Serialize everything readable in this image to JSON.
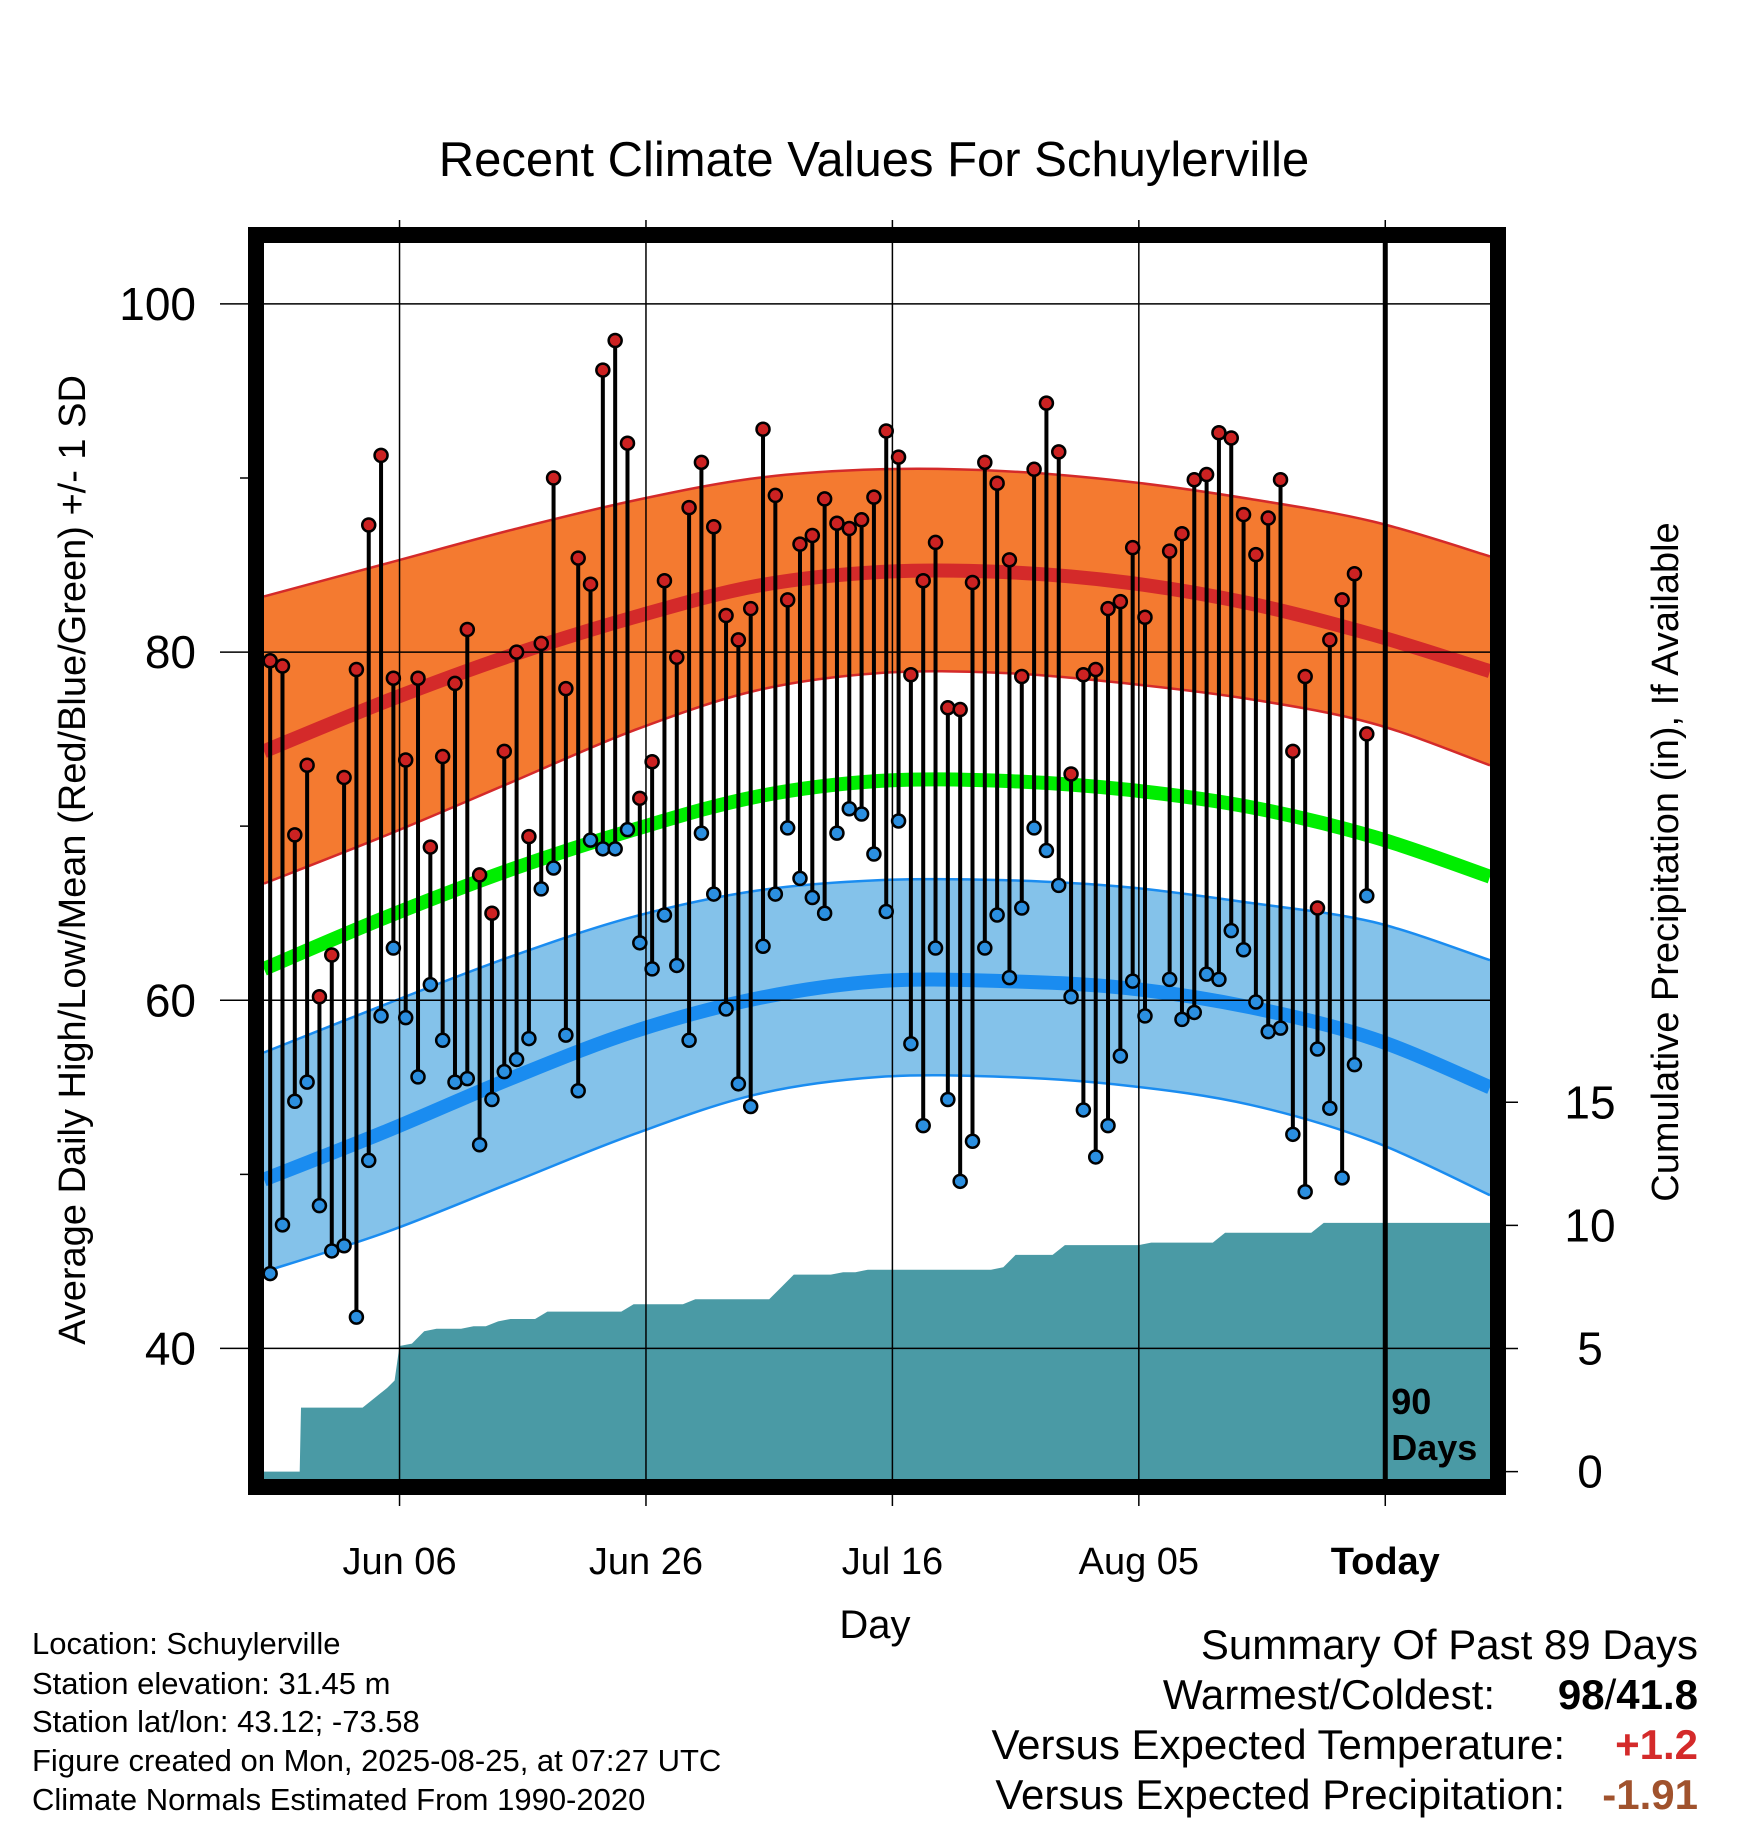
{
  "chart_data": {
    "type": "line",
    "title": "Recent Climate Values For Schuylerville",
    "xlabel": "Day",
    "ylabel": "Average Daily High/Low/Mean (Red/Blue/Green) +/- 1 SD",
    "y2label": "Cumulative Precipitation (in), If Available",
    "ylim": [
      32.5,
      103.5
    ],
    "y2lim": [
      -0.3,
      49.9
    ],
    "xlim": [
      0,
      99.5
    ],
    "x_ticks": [
      {
        "day": 11,
        "label": "Jun 06"
      },
      {
        "day": 31,
        "label": "Jun 26"
      },
      {
        "day": 51,
        "label": "Jul 16"
      },
      {
        "day": 71,
        "label": "Aug 05"
      },
      {
        "day": 91,
        "label": "Today"
      }
    ],
    "y_ticks": [
      40,
      60,
      80,
      100
    ],
    "y_minor_ticks": [
      50,
      70,
      90
    ],
    "y2_ticks": [
      0,
      5,
      10,
      15
    ],
    "today_marker": {
      "day": 91,
      "label_line1": "90",
      "label_line2": "Days"
    },
    "colors": {
      "high_band": "#f47a30",
      "high_line": "#d42a2a",
      "mean_line": "#00ee00",
      "low_band": "#84c2ea",
      "low_line": "#1a8cf0",
      "high_point": "#cc2222",
      "low_point": "#2b8fe0",
      "precip_fill": "#4a9aa5",
      "positive": "#d42a2a",
      "negative": "#a0522d"
    },
    "normals": {
      "days": [
        0,
        10,
        20,
        30,
        40,
        50,
        60,
        70,
        80,
        90,
        99.5
      ],
      "high_mean": [
        74.3,
        77.2,
        79.8,
        82.0,
        83.8,
        84.6,
        84.6,
        84.0,
        82.8,
        81.0,
        78.9
      ],
      "high_upper": [
        83.2,
        85.1,
        87.0,
        88.7,
        90.0,
        90.5,
        90.4,
        89.8,
        88.8,
        87.5,
        85.5
      ],
      "high_lower": [
        66.7,
        69.5,
        72.5,
        75.5,
        77.8,
        78.8,
        78.8,
        78.2,
        77.3,
        75.9,
        73.5
      ],
      "mean_mean": [
        61.8,
        64.8,
        67.5,
        69.8,
        71.7,
        72.6,
        72.6,
        72.1,
        71.1,
        69.4,
        67.1
      ],
      "low_mean": [
        49.7,
        52.5,
        55.5,
        58.2,
        60.1,
        61.1,
        61.1,
        60.7,
        59.6,
        57.8,
        55.0
      ],
      "low_upper": [
        57.0,
        59.8,
        62.5,
        64.8,
        66.3,
        66.9,
        66.9,
        66.5,
        65.6,
        64.5,
        62.3
      ],
      "low_lower": [
        44.4,
        46.7,
        49.5,
        52.3,
        54.6,
        55.6,
        55.6,
        55.1,
        54.0,
        51.9,
        48.8
      ]
    },
    "series": [
      {
        "name": "High",
        "values": [
          79.5,
          79.2,
          69.5,
          73.5,
          60.2,
          62.6,
          72.8,
          79.0,
          87.3,
          91.3,
          78.5,
          73.8,
          78.5,
          68.8,
          74.0,
          78.2,
          81.3,
          67.2,
          65.0,
          74.3,
          80.0,
          69.4,
          80.5,
          90.0,
          77.9,
          85.4,
          83.9,
          96.2,
          97.9,
          92.0,
          71.6,
          73.7,
          84.1,
          79.7,
          88.3,
          90.9,
          87.2,
          82.1,
          80.7,
          82.5,
          92.8,
          89.0,
          83.0,
          86.2,
          86.7,
          88.8,
          87.4,
          87.1,
          87.6,
          88.9,
          92.7,
          91.2,
          78.7,
          84.1,
          86.3,
          76.8,
          76.7,
          84.0,
          90.9,
          89.7,
          85.3,
          78.6,
          90.5,
          94.3,
          91.5,
          73.0,
          78.7,
          79.0,
          82.5,
          82.9,
          86.0,
          82.0,
          null,
          85.8,
          86.8,
          89.9,
          90.2,
          92.6,
          92.3,
          87.9,
          85.6,
          87.7,
          89.9,
          74.3,
          78.6,
          65.3,
          80.7,
          83.0,
          84.5,
          75.3
        ]
      },
      {
        "name": "Low",
        "values": [
          44.3,
          47.1,
          54.2,
          55.3,
          48.2,
          45.6,
          45.9,
          41.8,
          50.8,
          59.1,
          63.0,
          59.0,
          55.6,
          60.9,
          57.7,
          55.3,
          55.5,
          51.7,
          54.3,
          55.9,
          56.6,
          57.8,
          66.4,
          67.6,
          58.0,
          54.8,
          69.2,
          68.7,
          68.7,
          69.8,
          63.3,
          61.8,
          64.9,
          62.0,
          57.7,
          69.6,
          66.1,
          59.5,
          55.2,
          53.9,
          63.1,
          66.1,
          69.9,
          67.0,
          65.9,
          65.0,
          69.6,
          71.0,
          70.7,
          68.4,
          65.1,
          70.3,
          57.5,
          52.8,
          63.0,
          54.3,
          49.6,
          51.9,
          63.0,
          64.9,
          61.3,
          65.3,
          69.9,
          68.6,
          66.6,
          60.2,
          53.7,
          51.0,
          52.8,
          56.8,
          61.1,
          59.1,
          null,
          61.2,
          58.9,
          59.3,
          61.5,
          61.2,
          64.0,
          62.9,
          59.9,
          58.2,
          58.4,
          52.3,
          49.0,
          57.2,
          53.8,
          49.8,
          56.3,
          66.0
        ]
      }
    ],
    "precip_cumulative": {
      "days": [
        0.0,
        2.9,
        3.0,
        7.0,
        8.0,
        9.0,
        10.0,
        10.6,
        11.0,
        12.0,
        13.0,
        14.0,
        15.0,
        16.0,
        17.0,
        18.0,
        19.0,
        20.0,
        21.0,
        22.0,
        23.0,
        24.0,
        25.0,
        26.0,
        27.0,
        28.0,
        29.0,
        30.0,
        31.0,
        32.0,
        33.0,
        34.0,
        35.0,
        36.0,
        37.0,
        38.0,
        39.0,
        40.0,
        41.0,
        42.0,
        43.0,
        44.0,
        45.0,
        46.0,
        47.0,
        48.0,
        49.0,
        50.0,
        51.0,
        52.0,
        53.0,
        54.0,
        55.0,
        56.0,
        57.0,
        58.0,
        59.0,
        60.0,
        61.0,
        62.0,
        63.0,
        64.0,
        65.0,
        66.0,
        67.0,
        68.0,
        69.0,
        70.0,
        71.0,
        72.0,
        73.0,
        74.0,
        75.0,
        76.0,
        77.0,
        78.0,
        79.0,
        80.0,
        81.0,
        82.0,
        83.0,
        84.0,
        85.0,
        86.0,
        87.0,
        88.0,
        89.0,
        90.0,
        91.0,
        99.5
      ],
      "values": [
        0,
        0,
        2.6,
        2.6,
        2.6,
        3.0,
        3.4,
        3.7,
        5.1,
        5.2,
        5.7,
        5.8,
        5.8,
        5.8,
        5.9,
        5.9,
        6.1,
        6.2,
        6.2,
        6.2,
        6.5,
        6.5,
        6.5,
        6.5,
        6.5,
        6.5,
        6.5,
        6.8,
        6.8,
        6.8,
        6.8,
        6.8,
        7.0,
        7.0,
        7.0,
        7.0,
        7.0,
        7.0,
        7.0,
        7.5,
        8.0,
        8.0,
        8.0,
        8.0,
        8.1,
        8.1,
        8.2,
        8.2,
        8.2,
        8.2,
        8.2,
        8.2,
        8.2,
        8.2,
        8.2,
        8.2,
        8.2,
        8.3,
        8.8,
        8.8,
        8.8,
        8.8,
        9.2,
        9.2,
        9.2,
        9.2,
        9.2,
        9.2,
        9.2,
        9.3,
        9.3,
        9.3,
        9.3,
        9.3,
        9.3,
        9.7,
        9.7,
        9.7,
        9.7,
        9.7,
        9.7,
        9.7,
        9.7,
        10.1,
        10.1,
        10.1,
        10.1,
        10.1,
        10.1,
        10.1
      ]
    }
  },
  "info": {
    "location": "Location: Schuylerville",
    "elevation": "Station elevation: 31.45 m",
    "latlon": "Station lat/lon: 43.12; -73.58",
    "created": "Figure created on Mon, 2025-08-25, at 07:27 UTC",
    "normals": "Climate Normals Estimated From 1990-2020"
  },
  "summary": {
    "heading": "Summary Of Past 89 Days",
    "extremes_label": "Warmest/Coldest:",
    "extremes_warm": "98",
    "extremes_sep": "/",
    "extremes_cold": "41.8",
    "temp_label": "Versus Expected Temperature:",
    "temp_value": "+1.2",
    "precip_label": "Versus Expected Precipitation:",
    "precip_value": "-1.91"
  }
}
